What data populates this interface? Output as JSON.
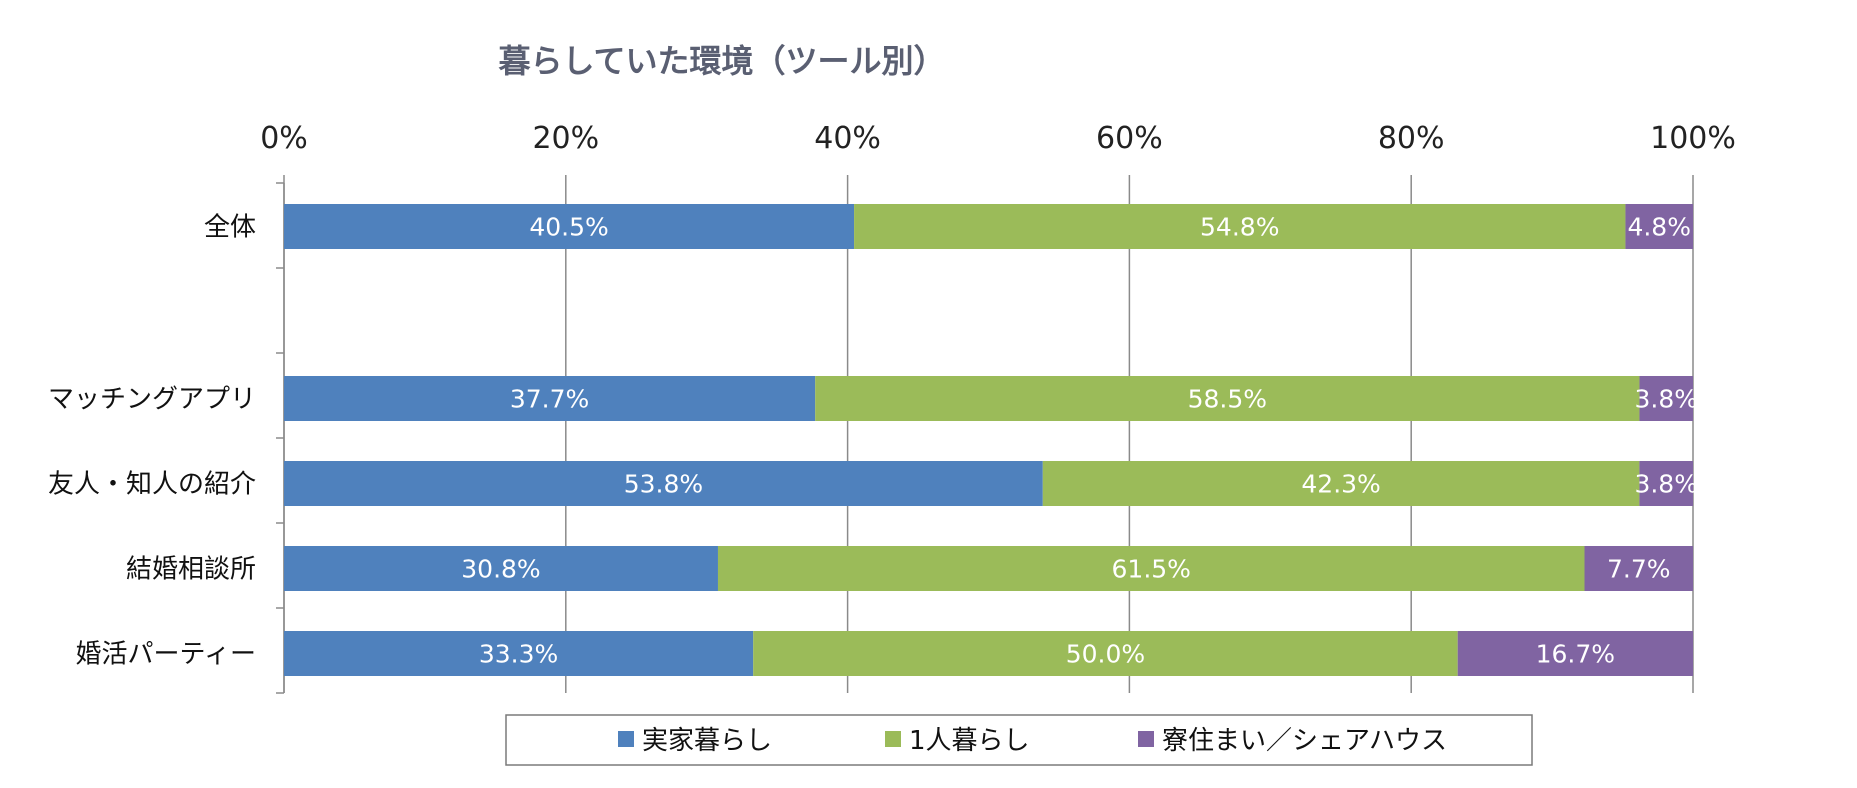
{
  "chart_data": {
    "type": "bar",
    "orientation": "horizontal",
    "stacked": true,
    "title": "暮らしていた環境（ツール別）",
    "xlabel": "",
    "ylabel": "",
    "xlim": [
      0,
      100
    ],
    "x_ticks": [
      "0%",
      "20%",
      "40%",
      "60%",
      "80%",
      "100%"
    ],
    "grid": true,
    "legend_position": "bottom",
    "categories": [
      "全体",
      "",
      "マッチングアプリ",
      "友人・知人の紹介",
      "結婚相談所",
      "婚活パーティー"
    ],
    "series": [
      {
        "name": "実家暮らし",
        "color": "#4f81bd",
        "values": [
          40.5,
          null,
          37.7,
          53.8,
          30.8,
          33.3
        ],
        "labels": [
          "40.5%",
          "",
          "37.7%",
          "53.8%",
          "30.8%",
          "33.3%"
        ]
      },
      {
        "name": "1人暮らし",
        "color": "#9bbb59",
        "values": [
          54.8,
          null,
          58.5,
          42.3,
          61.5,
          50.0
        ],
        "labels": [
          "54.8%",
          "",
          "58.5%",
          "42.3%",
          "61.5%",
          "50.0%"
        ]
      },
      {
        "name": "寮住まい／シェアハウス",
        "color": "#8064a2",
        "values": [
          4.8,
          null,
          3.8,
          3.8,
          7.7,
          16.7
        ],
        "labels": [
          "4.8%",
          "",
          "3.8%",
          "3.8%",
          "7.7%",
          "16.7%"
        ]
      }
    ]
  }
}
